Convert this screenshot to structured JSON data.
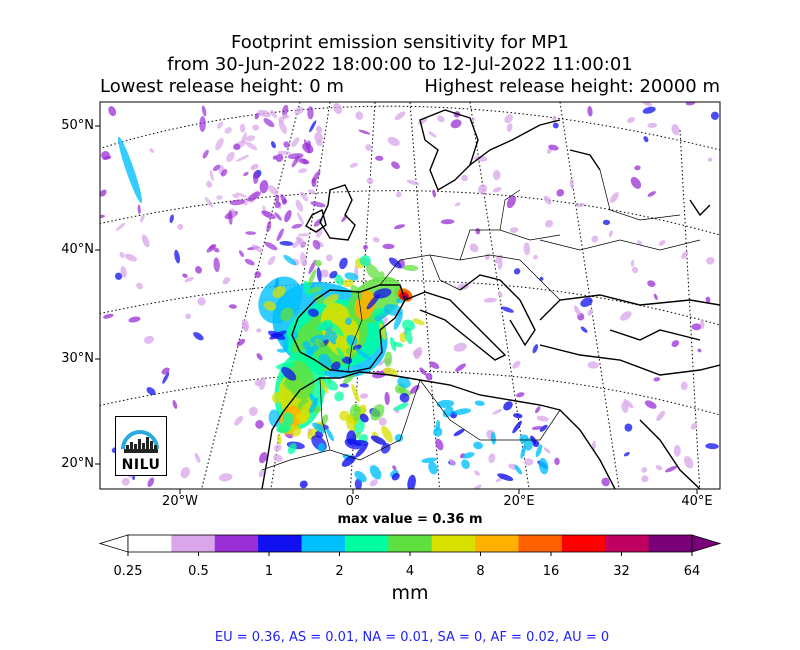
{
  "chart_data": {
    "type": "heatmap",
    "title_line1": "Footprint emission sensitivity for MP1",
    "title_line2": "from 30-Jun-2022 18:00:00 to 12-Jul-2022 11:00:01",
    "release_low": "Lowest release height: 0 m",
    "release_high": "Highest release height: 20000 m",
    "lat_ticks": [
      "50°N",
      "40°N",
      "30°N",
      "20°N"
    ],
    "lon_ticks": [
      "20°W",
      "0°",
      "20°E",
      "40°E"
    ],
    "max_value_label": "max value = 0.36 m",
    "colorbar": {
      "ticks": [
        "0.25",
        "0.5",
        "1",
        "2",
        "4",
        "8",
        "16",
        "32",
        "64"
      ],
      "unit": "mm",
      "colors": [
        "#ffffff",
        "#d9a6ea",
        "#9b2fd6",
        "#1010f0",
        "#00c0ff",
        "#00ffa0",
        "#60e040",
        "#d8e000",
        "#ffb000",
        "#ff6000",
        "#ff0000",
        "#c00060",
        "#7a007a"
      ],
      "extend": "both"
    },
    "region_summary": "EU = 0.36,  AS = 0.01,  NA = 0.01,  SA = 0,  AF = 0.02,  AU = 0",
    "logo_text": "NILU",
    "accent_colors": {
      "region_text": "#1f1fff",
      "max_cell": "#7a007a"
    }
  }
}
